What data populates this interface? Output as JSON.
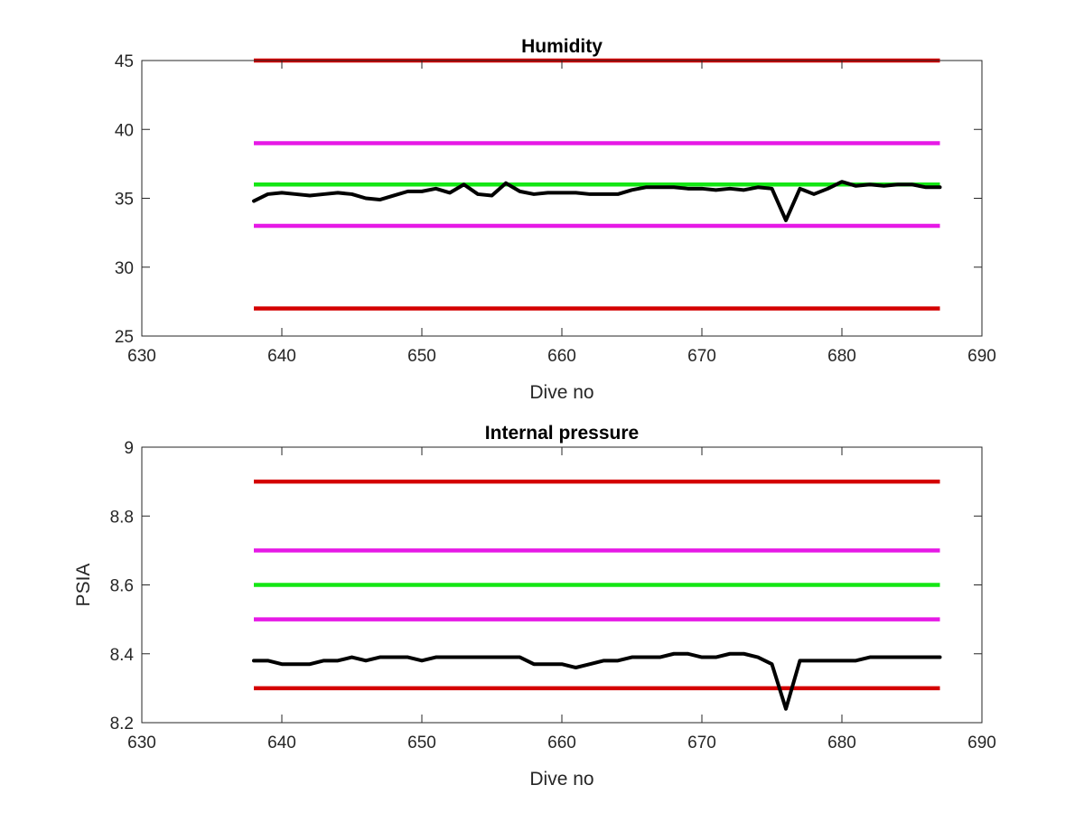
{
  "chart_data": [
    {
      "type": "line",
      "title": "Humidity",
      "xlabel": "Dive no",
      "ylabel": "",
      "xlim": [
        630,
        690
      ],
      "ylim": [
        25,
        45
      ],
      "xticks": [
        630,
        640,
        650,
        660,
        670,
        680,
        690
      ],
      "yticks": [
        25,
        30,
        35,
        40,
        45
      ],
      "xtick_labels": [
        "630",
        "640",
        "650",
        "660",
        "670",
        "680",
        "690"
      ],
      "ytick_labels": [
        "25",
        "30",
        "35",
        "40",
        "45"
      ],
      "grid": false,
      "thresholds": [
        {
          "value": 45,
          "x": [
            638,
            687
          ],
          "color": "#d40000"
        },
        {
          "value": 39,
          "x": [
            638,
            687
          ],
          "color": "#e619e6"
        },
        {
          "value": 36,
          "x": [
            638,
            687
          ],
          "color": "#14e614"
        },
        {
          "value": 33,
          "x": [
            638,
            687
          ],
          "color": "#e619e6"
        },
        {
          "value": 27,
          "x": [
            638,
            687
          ],
          "color": "#d40000"
        }
      ],
      "series": [
        {
          "color": "#000000",
          "x": [
            638,
            639,
            640,
            641,
            642,
            643,
            644,
            645,
            646,
            647,
            648,
            649,
            650,
            651,
            652,
            653,
            654,
            655,
            656,
            657,
            658,
            659,
            660,
            661,
            662,
            663,
            664,
            665,
            666,
            667,
            668,
            669,
            670,
            671,
            672,
            673,
            674,
            675,
            676,
            677,
            678,
            679,
            680,
            681,
            682,
            683,
            684,
            685,
            686,
            687
          ],
          "y": [
            34.8,
            35.3,
            35.4,
            35.3,
            35.2,
            35.3,
            35.4,
            35.3,
            35.0,
            34.9,
            35.2,
            35.5,
            35.5,
            35.7,
            35.4,
            36.0,
            35.3,
            35.2,
            36.1,
            35.5,
            35.3,
            35.4,
            35.4,
            35.4,
            35.3,
            35.3,
            35.3,
            35.6,
            35.8,
            35.8,
            35.8,
            35.7,
            35.7,
            35.6,
            35.7,
            35.6,
            35.8,
            35.7,
            33.4,
            35.7,
            35.3,
            35.7,
            36.2,
            35.9,
            36.0,
            35.9,
            36.0,
            36.0,
            35.8,
            35.8
          ]
        }
      ]
    },
    {
      "type": "line",
      "title": "Internal pressure",
      "xlabel": "Dive no",
      "ylabel": "PSIA",
      "xlim": [
        630,
        690
      ],
      "ylim": [
        8.2,
        9.0
      ],
      "xticks": [
        630,
        640,
        650,
        660,
        670,
        680,
        690
      ],
      "yticks": [
        8.2,
        8.4,
        8.6,
        8.8,
        9.0
      ],
      "xtick_labels": [
        "630",
        "640",
        "650",
        "660",
        "670",
        "680",
        "690"
      ],
      "ytick_labels": [
        "8.2",
        "8.4",
        "8.6",
        "8.8",
        "9"
      ],
      "grid": false,
      "thresholds": [
        {
          "value": 8.9,
          "x": [
            638,
            687
          ],
          "color": "#d40000"
        },
        {
          "value": 8.7,
          "x": [
            638,
            687
          ],
          "color": "#e619e6"
        },
        {
          "value": 8.6,
          "x": [
            638,
            687
          ],
          "color": "#14e614"
        },
        {
          "value": 8.5,
          "x": [
            638,
            687
          ],
          "color": "#e619e6"
        },
        {
          "value": 8.3,
          "x": [
            638,
            687
          ],
          "color": "#d40000"
        }
      ],
      "series": [
        {
          "color": "#000000",
          "x": [
            638,
            639,
            640,
            641,
            642,
            643,
            644,
            645,
            646,
            647,
            648,
            649,
            650,
            651,
            652,
            653,
            654,
            655,
            656,
            657,
            658,
            659,
            660,
            661,
            662,
            663,
            664,
            665,
            666,
            667,
            668,
            669,
            670,
            671,
            672,
            673,
            674,
            675,
            676,
            677,
            678,
            679,
            680,
            681,
            682,
            683,
            684,
            685,
            686,
            687
          ],
          "y": [
            8.38,
            8.38,
            8.37,
            8.37,
            8.37,
            8.38,
            8.38,
            8.39,
            8.38,
            8.39,
            8.39,
            8.39,
            8.38,
            8.39,
            8.39,
            8.39,
            8.39,
            8.39,
            8.39,
            8.39,
            8.37,
            8.37,
            8.37,
            8.36,
            8.37,
            8.38,
            8.38,
            8.39,
            8.39,
            8.39,
            8.4,
            8.4,
            8.39,
            8.39,
            8.4,
            8.4,
            8.39,
            8.37,
            8.24,
            8.38,
            8.38,
            8.38,
            8.38,
            8.38,
            8.39,
            8.39,
            8.39,
            8.39,
            8.39,
            8.39
          ]
        }
      ]
    }
  ]
}
